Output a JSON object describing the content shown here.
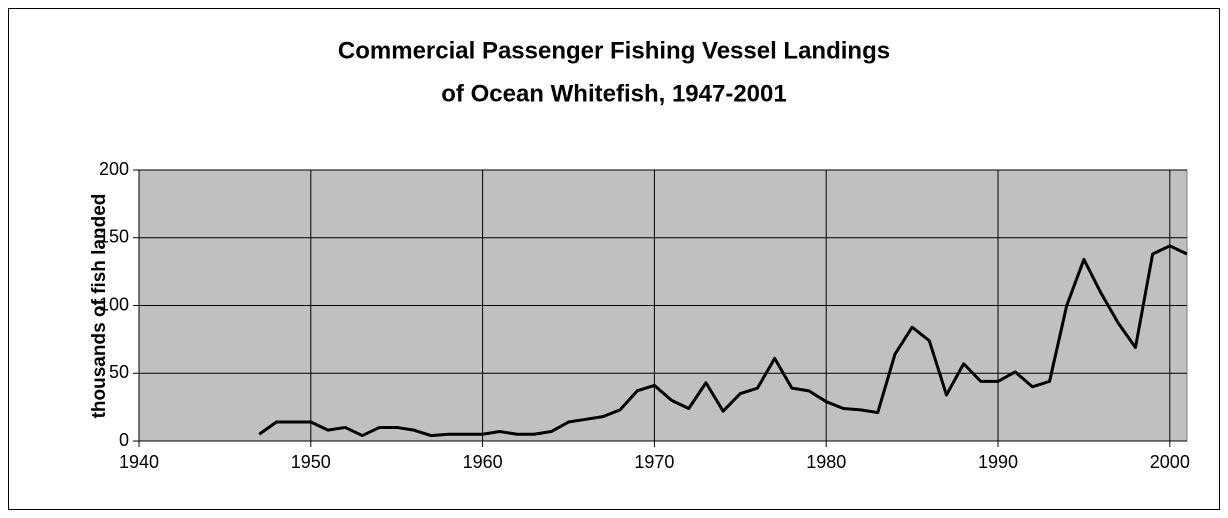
{
  "chart_data": {
    "type": "line",
    "title": [
      "Commercial Passenger Fishing Vessel Landings",
      "of Ocean Whitefish, 1947-2001"
    ],
    "y_label": "thousands of fish landed",
    "x": [
      1947,
      1948,
      1949,
      1950,
      1951,
      1952,
      1953,
      1954,
      1955,
      1956,
      1957,
      1958,
      1959,
      1960,
      1961,
      1962,
      1963,
      1964,
      1965,
      1966,
      1967,
      1968,
      1969,
      1970,
      1971,
      1972,
      1973,
      1974,
      1975,
      1976,
      1977,
      1978,
      1979,
      1980,
      1981,
      1982,
      1983,
      1984,
      1985,
      1986,
      1987,
      1988,
      1989,
      1990,
      1991,
      1992,
      1993,
      1994,
      1995,
      1996,
      1997,
      1998,
      1999,
      2000,
      2001
    ],
    "series": [
      {
        "name": "landings",
        "color": "#000000",
        "values": [
          5,
          14,
          14,
          14,
          8,
          10,
          4,
          10,
          10,
          8,
          4,
          5,
          5,
          5,
          7,
          5,
          5,
          7,
          14,
          16,
          18,
          23,
          37,
          41,
          30,
          24,
          43,
          22,
          35,
          39,
          61,
          39,
          37,
          29,
          24,
          23,
          21,
          64,
          84,
          74,
          34,
          57,
          44,
          44,
          51,
          40,
          44,
          100,
          134,
          109,
          87,
          69,
          138,
          144,
          138
        ]
      }
    ],
    "xlim": [
      1940,
      2001
    ],
    "xticks": [
      1940,
      1950,
      1960,
      1970,
      1980,
      1990,
      2000
    ],
    "ylim": [
      0,
      200
    ],
    "yticks": [
      0,
      50,
      100,
      150,
      200
    ],
    "grid": true,
    "plot_background": "#c0c0c0"
  }
}
